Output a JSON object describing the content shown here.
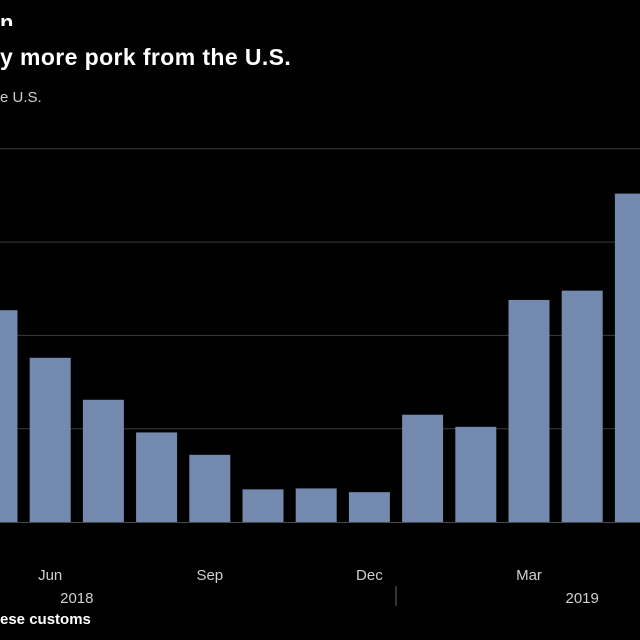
{
  "header": {
    "title_fragment": "n",
    "headline": "y more pork from the U.S.",
    "subtitle": "e U.S."
  },
  "footer": {
    "source": "ese customs"
  },
  "colors": {
    "background": "#000000",
    "bar": "#7389ad",
    "gridline": "#3b3b3b",
    "text": "#ffffff",
    "axis_text": "#d0d0d0"
  },
  "chart_data": {
    "type": "bar",
    "title": "",
    "xlabel": "",
    "ylabel": "",
    "ylim": [
      0,
      4
    ],
    "gridlines": [
      1,
      2,
      3,
      4
    ],
    "grid": true,
    "y_tick_labels_visible": false,
    "categories": [
      "May 2018",
      "Jun 2018",
      "Jul 2018",
      "Aug 2018",
      "Sep 2018",
      "Oct 2018",
      "Nov 2018",
      "Dec 2018",
      "Jan 2019",
      "Feb 2019",
      "Mar 2019",
      "Apr 2019",
      "May 2019"
    ],
    "values": [
      2.27,
      1.76,
      1.31,
      0.96,
      0.72,
      0.35,
      0.36,
      0.32,
      1.15,
      1.02,
      2.38,
      2.48,
      3.52
    ],
    "x_tick_labels": [
      {
        "label": "Jun",
        "category_index": 1
      },
      {
        "label": "Sep",
        "category_index": 4
      },
      {
        "label": "Dec",
        "category_index": 7
      },
      {
        "label": "Mar",
        "category_index": 10
      }
    ],
    "year_labels": [
      {
        "label": "2018",
        "category_index": 1.5
      },
      {
        "label": "2019",
        "category_index": 11
      }
    ],
    "year_divider_after_index": 7.5
  }
}
